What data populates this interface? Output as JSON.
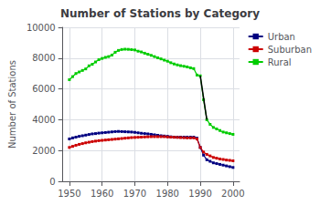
{
  "chart_data": {
    "type": "line",
    "title": "Number of Stations by Category",
    "ylabel": "Number of Stations",
    "x": [
      1950,
      1951,
      1952,
      1953,
      1954,
      1955,
      1956,
      1957,
      1958,
      1959,
      1960,
      1961,
      1962,
      1963,
      1964,
      1965,
      1966,
      1967,
      1968,
      1969,
      1970,
      1971,
      1972,
      1973,
      1974,
      1975,
      1976,
      1977,
      1978,
      1979,
      1980,
      1981,
      1982,
      1983,
      1984,
      1985,
      1986,
      1987,
      1988,
      1989,
      1990,
      1991,
      1992,
      1993,
      1994,
      1995,
      1996,
      1997,
      1998,
      1999,
      2000
    ],
    "series": [
      {
        "name": "Urban",
        "color": "#000080",
        "marker": "square",
        "values": [
          2750,
          2820,
          2870,
          2920,
          2960,
          3000,
          3040,
          3080,
          3100,
          3130,
          3150,
          3170,
          3190,
          3210,
          3230,
          3240,
          3230,
          3220,
          3210,
          3200,
          3180,
          3150,
          3120,
          3100,
          3080,
          3050,
          3020,
          2990,
          2960,
          2940,
          2920,
          2890,
          2870,
          2870,
          2870,
          2870,
          2870,
          2870,
          2870,
          2800,
          2200,
          1700,
          1400,
          1300,
          1200,
          1150,
          1100,
          1050,
          1000,
          950,
          900
        ]
      },
      {
        "name": "Suburban",
        "color": "#cc0000",
        "marker": "square",
        "values": [
          2200,
          2270,
          2340,
          2400,
          2450,
          2500,
          2540,
          2580,
          2610,
          2640,
          2660,
          2680,
          2700,
          2720,
          2740,
          2760,
          2780,
          2800,
          2820,
          2840,
          2850,
          2860,
          2870,
          2880,
          2890,
          2900,
          2900,
          2900,
          2900,
          2900,
          2880,
          2870,
          2860,
          2850,
          2840,
          2830,
          2820,
          2820,
          2820,
          2750,
          2200,
          1900,
          1750,
          1650,
          1550,
          1500,
          1450,
          1420,
          1380,
          1360,
          1330
        ]
      },
      {
        "name": "Rural",
        "color": "#00cc00",
        "marker": "square",
        "values": [
          6600,
          6800,
          7000,
          7100,
          7200,
          7300,
          7500,
          7600,
          7750,
          7900,
          7980,
          8050,
          8100,
          8200,
          8380,
          8500,
          8560,
          8580,
          8570,
          8550,
          8530,
          8450,
          8400,
          8320,
          8250,
          8180,
          8100,
          8020,
          7950,
          7870,
          7800,
          7700,
          7620,
          7560,
          7510,
          7470,
          7430,
          7370,
          7320,
          6900,
          6850,
          5300,
          4000,
          3700,
          3500,
          3400,
          3300,
          3200,
          3150,
          3100,
          3050
        ]
      },
      {
        "color": "#000000",
        "x": [
          1990,
          1992
        ],
        "values": [
          6850,
          4000
        ]
      }
    ],
    "xlim": [
      1948,
      2002
    ],
    "xticks": [
      1950,
      1960,
      1970,
      1980,
      1990,
      2000
    ],
    "ylim": [
      0,
      10000
    ],
    "yticks": [
      0,
      2000,
      4000,
      6000,
      8000,
      10000
    ],
    "grid": true,
    "legend": "upper right"
  }
}
